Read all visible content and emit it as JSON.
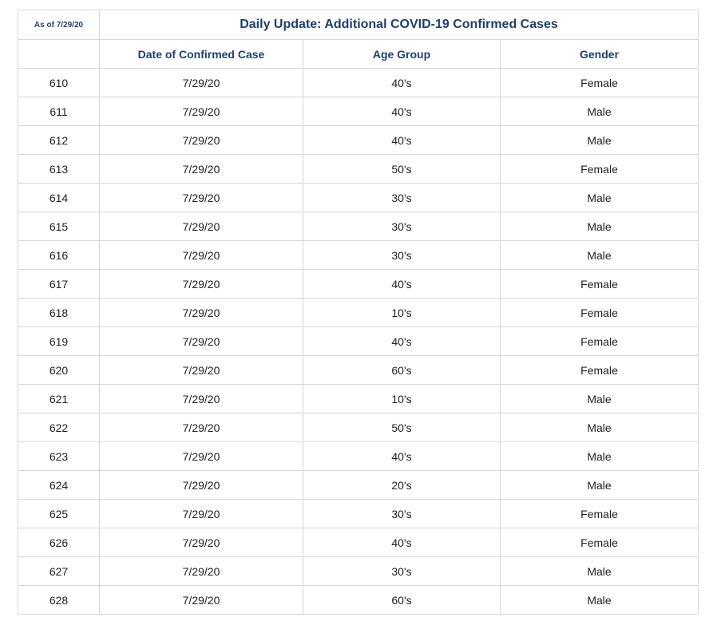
{
  "as_of": "As of 7/29/20",
  "title": "Daily Update: Additional COVID-19 Confirmed Cases",
  "columns": [
    "",
    "Date of Confirmed Case",
    "Age Group",
    "Gender"
  ],
  "rows": [
    {
      "id": "610",
      "date": "7/29/20",
      "age": "40's",
      "gender": "Female"
    },
    {
      "id": "611",
      "date": "7/29/20",
      "age": "40's",
      "gender": "Male"
    },
    {
      "id": "612",
      "date": "7/29/20",
      "age": "40's",
      "gender": "Male"
    },
    {
      "id": "613",
      "date": "7/29/20",
      "age": "50's",
      "gender": "Female"
    },
    {
      "id": "614",
      "date": "7/29/20",
      "age": "30's",
      "gender": "Male"
    },
    {
      "id": "615",
      "date": "7/29/20",
      "age": "30's",
      "gender": "Male"
    },
    {
      "id": "616",
      "date": "7/29/20",
      "age": "30's",
      "gender": "Male"
    },
    {
      "id": "617",
      "date": "7/29/20",
      "age": "40's",
      "gender": "Female"
    },
    {
      "id": "618",
      "date": "7/29/20",
      "age": "10's",
      "gender": "Female"
    },
    {
      "id": "619",
      "date": "7/29/20",
      "age": "40's",
      "gender": "Female"
    },
    {
      "id": "620",
      "date": "7/29/20",
      "age": "60's",
      "gender": "Female"
    },
    {
      "id": "621",
      "date": "7/29/20",
      "age": "10's",
      "gender": "Male"
    },
    {
      "id": "622",
      "date": "7/29/20",
      "age": "50's",
      "gender": "Male"
    },
    {
      "id": "623",
      "date": "7/29/20",
      "age": "40's",
      "gender": "Male"
    },
    {
      "id": "624",
      "date": "7/29/20",
      "age": "20's",
      "gender": "Male"
    },
    {
      "id": "625",
      "date": "7/29/20",
      "age": "30's",
      "gender": "Female"
    },
    {
      "id": "626",
      "date": "7/29/20",
      "age": "40's",
      "gender": "Female"
    },
    {
      "id": "627",
      "date": "7/29/20",
      "age": "30's",
      "gender": "Male"
    },
    {
      "id": "628",
      "date": "7/29/20",
      "age": "60's",
      "gender": "Male"
    }
  ],
  "colors": {
    "heading": "#1f3f6b",
    "text": "#222222",
    "border": "#d7d7d7"
  }
}
